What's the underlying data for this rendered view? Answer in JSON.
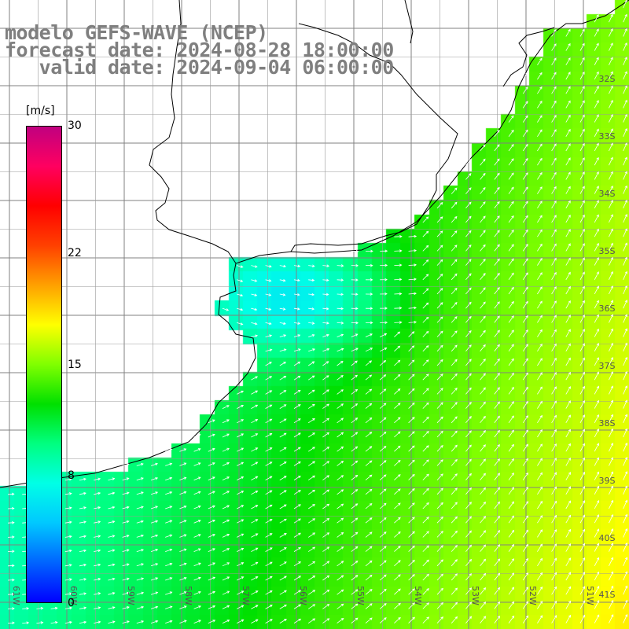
{
  "title": {
    "line1": "modelo GEFS-WAVE (NCEP)",
    "line2": "forecast date: 2024-08-28 18:00:00",
    "line3": "   valid date: 2024-09-04 06:00:00"
  },
  "legend": {
    "unit": "[m/s]",
    "ticks": [
      {
        "label": "30",
        "value": 30
      },
      {
        "label": "22",
        "value": 22
      },
      {
        "label": "15",
        "value": 15
      },
      {
        "label": "8",
        "value": 8
      },
      {
        "label": "0",
        "value": 0
      }
    ],
    "range": [
      0,
      30
    ],
    "colors": [
      "#0000ff",
      "#0064ff",
      "#00c8ff",
      "#00ffe6",
      "#00ff80",
      "#00e000",
      "#80ff00",
      "#ffff00",
      "#ffa000",
      "#ff4000",
      "#ff0000",
      "#ff0060",
      "#c00080"
    ]
  },
  "map": {
    "lat_labels": [
      "32S",
      "33S",
      "34S",
      "35S",
      "36S",
      "37S",
      "38S",
      "39S",
      "40S",
      "41S"
    ],
    "lon_labels": [
      "61W",
      "60W",
      "59W",
      "58W",
      "57W",
      "56W",
      "55W",
      "54W",
      "53W",
      "52W",
      "51W"
    ],
    "lat_range": [
      -41.3,
      -30.6
    ],
    "lon_range": [
      -61.3,
      -50.2
    ],
    "field": "wind speed with direction arrows",
    "dominant_direction": "northeast",
    "coastline_color": "#000000",
    "land_color": "#ffffff",
    "grid_color": "#808080",
    "arrow_color": "#ffffff"
  }
}
